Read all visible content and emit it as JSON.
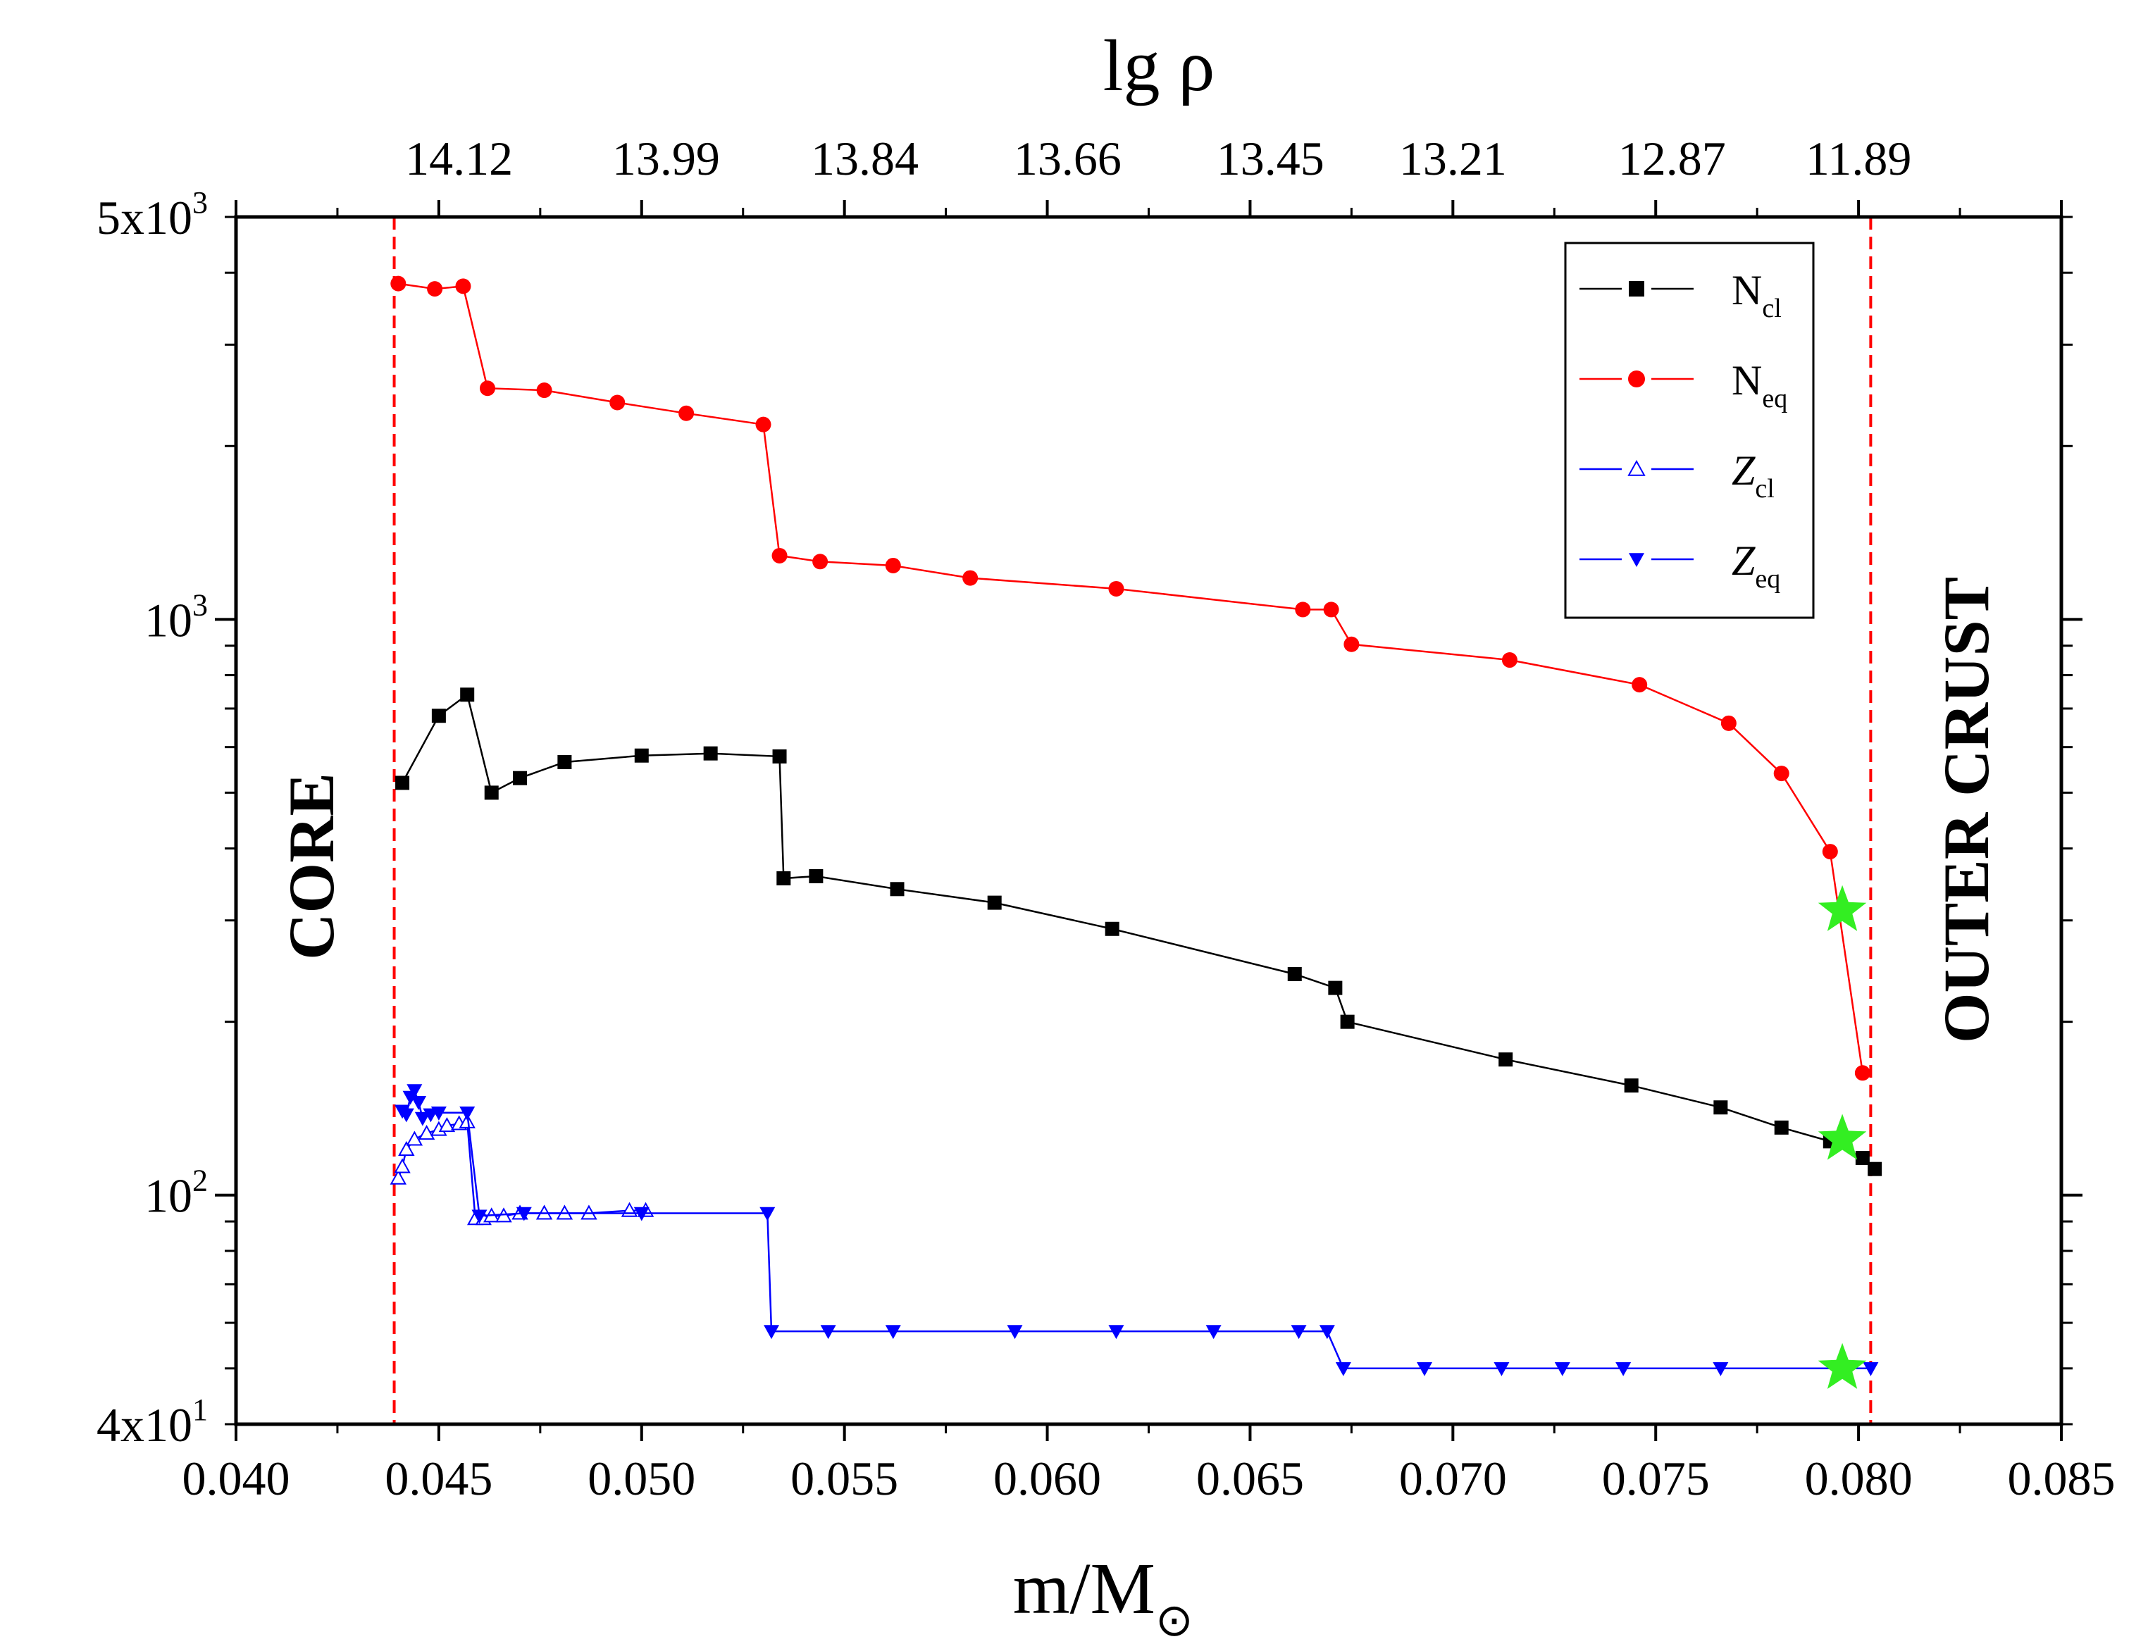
{
  "chart_data": {
    "type": "line",
    "xlabel": "m/M",
    "xlabel_symbol": "⊙",
    "top_xlabel": "lg ρ",
    "ylabel": "",
    "yscale": "log",
    "xlim": [
      0.04,
      0.085
    ],
    "ylim": [
      40,
      5000
    ],
    "x_ticks": [
      {
        "v": 0.04,
        "label": "0.040"
      },
      {
        "v": 0.045,
        "label": "0.045"
      },
      {
        "v": 0.05,
        "label": "0.050"
      },
      {
        "v": 0.055,
        "label": "0.055"
      },
      {
        "v": 0.06,
        "label": "0.060"
      },
      {
        "v": 0.065,
        "label": "0.065"
      },
      {
        "v": 0.07,
        "label": "0.070"
      },
      {
        "v": 0.075,
        "label": "0.075"
      },
      {
        "v": 0.08,
        "label": "0.080"
      },
      {
        "v": 0.085,
        "label": "0.085"
      }
    ],
    "top_ticks": [
      {
        "v": 0.0455,
        "label": "14.12"
      },
      {
        "v": 0.0506,
        "label": "13.99"
      },
      {
        "v": 0.0555,
        "label": "13.84"
      },
      {
        "v": 0.0605,
        "label": "13.66"
      },
      {
        "v": 0.0655,
        "label": "13.45"
      },
      {
        "v": 0.07,
        "label": "13.21"
      },
      {
        "v": 0.0754,
        "label": "12.87"
      },
      {
        "v": 0.08,
        "label": "11.89"
      }
    ],
    "y_ticks": [
      {
        "v": 5000,
        "base": "5x10",
        "exp": "3"
      },
      {
        "v": 1000,
        "base": "10",
        "exp": "3"
      },
      {
        "v": 100,
        "base": "10",
        "exp": "2"
      },
      {
        "v": 40,
        "base": "4x10",
        "exp": "1"
      }
    ],
    "region_labels": {
      "left": "CORE",
      "right": "OUTER CRUST"
    },
    "boundaries": [
      0.0439,
      0.0803
    ],
    "series": [
      {
        "name": "N_cl",
        "base": "N",
        "sub": "cl",
        "color": "#000000",
        "marker": "square",
        "x": [
          0.0441,
          0.045,
          0.0457,
          0.0463,
          0.047,
          0.0481,
          0.05,
          0.0517,
          0.0534,
          0.0535,
          0.0543,
          0.0563,
          0.0587,
          0.0616,
          0.0661,
          0.0671,
          0.0674,
          0.0713,
          0.0744,
          0.0766,
          0.0781,
          0.0793,
          0.0801,
          0.0804
        ],
        "y": [
          520,
          680,
          740,
          500,
          530,
          565,
          580,
          585,
          578,
          355,
          358,
          340,
          322,
          290,
          242,
          229,
          200,
          172,
          155,
          142,
          131,
          124,
          116,
          111
        ]
      },
      {
        "name": "N_eq",
        "base": "N",
        "sub": "eq",
        "color": "#ff0000",
        "marker": "circle",
        "x": [
          0.044,
          0.0449,
          0.0456,
          0.0462,
          0.0476,
          0.0494,
          0.0511,
          0.053,
          0.0534,
          0.0544,
          0.0562,
          0.0581,
          0.0617,
          0.0663,
          0.067,
          0.0675,
          0.0714,
          0.0746,
          0.0768,
          0.0781,
          0.0793,
          0.0801
        ],
        "y": [
          3830,
          3750,
          3790,
          2520,
          2500,
          2380,
          2280,
          2180,
          1290,
          1260,
          1240,
          1180,
          1130,
          1040,
          1040,
          905,
          850,
          770,
          660,
          540,
          395,
          163
        ]
      },
      {
        "name": "Z_cl",
        "base": "Z",
        "sub": "cl",
        "color": "#0000ff",
        "marker": "triangle-up-open",
        "x": [
          0.044,
          0.0441,
          0.0442,
          0.0444,
          0.0447,
          0.045,
          0.0452,
          0.0455,
          0.0457,
          0.0459,
          0.0461,
          0.0463,
          0.0466,
          0.047,
          0.0476,
          0.0481,
          0.0487,
          0.0497,
          0.0501
        ],
        "y": [
          107,
          112,
          120,
          125,
          128,
          130,
          132,
          133,
          134,
          91,
          91,
          92,
          92,
          93,
          93,
          93,
          93,
          94,
          94
        ]
      },
      {
        "name": "Z_eq",
        "base": "Z",
        "sub": "eq",
        "color": "#0000ff",
        "marker": "triangle-down",
        "x": [
          0.0441,
          0.0442,
          0.0443,
          0.0444,
          0.0445,
          0.0446,
          0.0448,
          0.045,
          0.0457,
          0.046,
          0.0471,
          0.05,
          0.0531,
          0.0532,
          0.0546,
          0.0562,
          0.0592,
          0.0617,
          0.0641,
          0.0662,
          0.0669,
          0.0673,
          0.0693,
          0.0712,
          0.0727,
          0.0742,
          0.0766,
          0.0803
        ],
        "y": [
          140,
          138,
          148,
          152,
          145,
          136,
          138,
          139,
          139,
          92,
          93,
          93,
          93,
          58,
          58,
          58,
          58,
          58,
          58,
          58,
          58,
          50,
          50,
          50,
          50,
          50,
          50,
          50
        ]
      }
    ],
    "highlight_points": [
      {
        "x": 0.0796,
        "y": 312,
        "color": "#33ee22"
      },
      {
        "x": 0.0796,
        "y": 125,
        "color": "#33ee22"
      },
      {
        "x": 0.0796,
        "y": 50,
        "color": "#33ee22"
      }
    ]
  }
}
